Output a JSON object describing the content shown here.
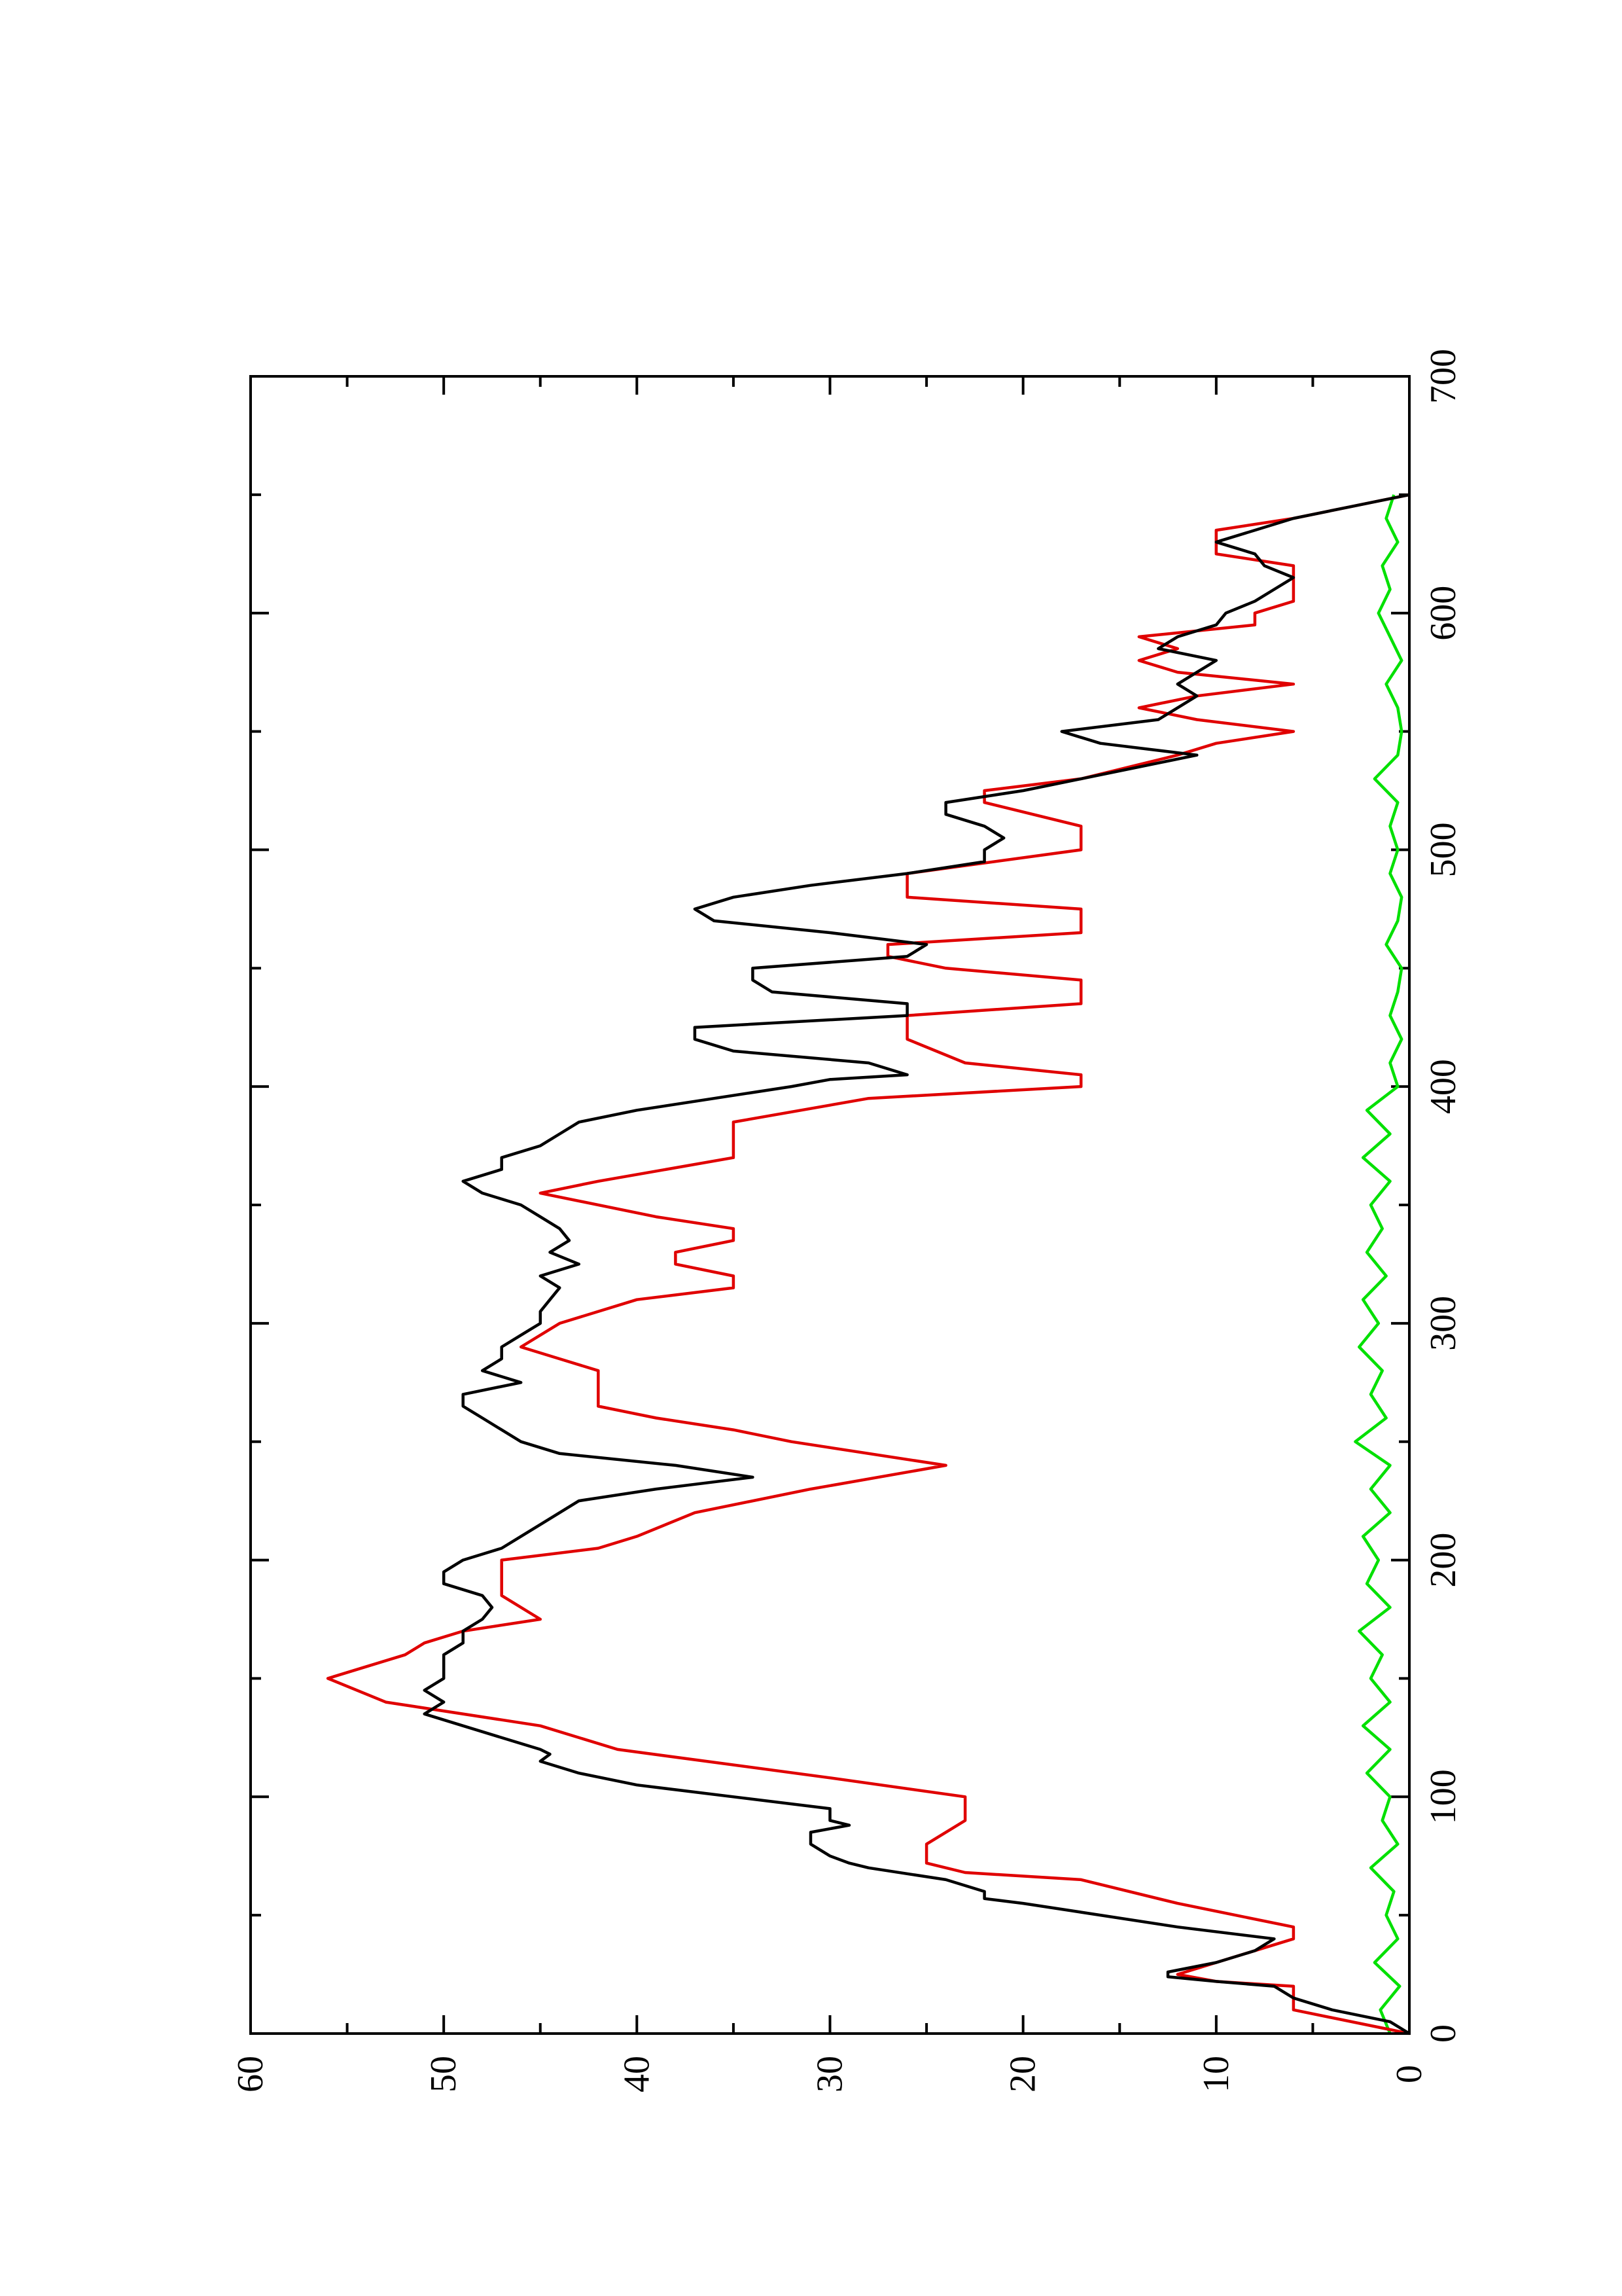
{
  "chart_data": {
    "type": "line",
    "orientation": "rotated-90-ccw",
    "title": "",
    "xlabel": "",
    "ylabel": "",
    "xlim": [
      0,
      700
    ],
    "ylim": [
      0,
      60
    ],
    "x_ticks": [
      0,
      100,
      200,
      300,
      400,
      500,
      600,
      700
    ],
    "x_tick_labels": [
      "0",
      "100",
      "200",
      "300",
      "400",
      "500",
      "600",
      "700"
    ],
    "x_minor_ticks": [
      50,
      150,
      250,
      350,
      450,
      550,
      650
    ],
    "y_ticks": [
      0,
      10,
      20,
      30,
      40,
      50,
      60
    ],
    "y_tick_labels": [
      "0",
      "10",
      "20",
      "30",
      "40",
      "50",
      "60"
    ],
    "y_minor_ticks": [
      5,
      15,
      25,
      35,
      45,
      55
    ],
    "grid": false,
    "legend": "none",
    "series": [
      {
        "color": "#000000",
        "x": [
          0,
          5,
          10,
          15,
          20,
          22,
          24,
          26,
          30,
          35,
          40,
          45,
          50,
          55,
          57,
          60,
          65,
          70,
          72,
          75,
          80,
          85,
          88,
          90,
          95,
          100,
          105,
          110,
          115,
          118,
          120,
          125,
          130,
          135,
          140,
          145,
          150,
          155,
          160,
          165,
          170,
          175,
          180,
          185,
          190,
          195,
          200,
          205,
          210,
          215,
          220,
          225,
          230,
          233,
          235,
          240,
          245,
          250,
          255,
          260,
          265,
          270,
          275,
          280,
          285,
          290,
          295,
          300,
          305,
          310,
          315,
          320,
          325,
          330,
          335,
          340,
          345,
          350,
          355,
          360,
          365,
          370,
          375,
          380,
          385,
          390,
          395,
          400,
          403,
          405,
          410,
          415,
          420,
          425,
          430,
          435,
          440,
          445,
          450,
          455,
          460,
          465,
          470,
          475,
          480,
          485,
          490,
          495,
          500,
          505,
          510,
          515,
          520,
          525,
          530,
          535,
          540,
          545,
          550,
          555,
          560,
          565,
          570,
          575,
          580,
          585,
          590,
          595,
          600,
          605,
          610,
          615,
          620,
          625,
          630,
          635,
          640,
          645,
          650
        ],
        "y": [
          0,
          1,
          4,
          6,
          7,
          10,
          12.5,
          12.5,
          10,
          8,
          7,
          12,
          16,
          20,
          22,
          22,
          24,
          28,
          29,
          30,
          31,
          31,
          29,
          30,
          30,
          35,
          40,
          43,
          45,
          44.5,
          45,
          47,
          49,
          51,
          50,
          51,
          50,
          50,
          50,
          49,
          49,
          48,
          47.5,
          48,
          50,
          50,
          49,
          47,
          46,
          45,
          44,
          43,
          39,
          36,
          34,
          38,
          44,
          46,
          47,
          48,
          49,
          49,
          46,
          48,
          47,
          47,
          46,
          45,
          45,
          44.5,
          44,
          45,
          43,
          44.5,
          43.5,
          44,
          45,
          46,
          48,
          49,
          47,
          47,
          45,
          44,
          43,
          40,
          36,
          32,
          30,
          26,
          28,
          35,
          37,
          37,
          26,
          26,
          33,
          34,
          34,
          26,
          25,
          30,
          36,
          37,
          35,
          31,
          26,
          22,
          22,
          21,
          22,
          24,
          24,
          20,
          17,
          14,
          11,
          16,
          18,
          13,
          12,
          11,
          12,
          11,
          10,
          13,
          12,
          10,
          9.5,
          8,
          7,
          6,
          7.5,
          8,
          10,
          8,
          6,
          3,
          0
        ]
      },
      {
        "color": "#e00000",
        "x": [
          0,
          10,
          20,
          22,
          25,
          30,
          40,
          45,
          55,
          65,
          68,
          72,
          80,
          90,
          100,
          108,
          120,
          130,
          140,
          150,
          155,
          160,
          165,
          170,
          175,
          185,
          200,
          205,
          210,
          220,
          230,
          240,
          250,
          255,
          260,
          265,
          280,
          285,
          290,
          300,
          310,
          315,
          320,
          325,
          330,
          335,
          340,
          345,
          355,
          360,
          370,
          385,
          395,
          400,
          405,
          410,
          420,
          430,
          435,
          445,
          450,
          455,
          460,
          465,
          475,
          480,
          490,
          500,
          510,
          520,
          525,
          530,
          540,
          545,
          550,
          555,
          560,
          565,
          570,
          575,
          580,
          585,
          590,
          595,
          600,
          605,
          615,
          620,
          625,
          635,
          640,
          645,
          650
        ],
        "y": [
          0,
          6,
          6,
          10,
          12,
          10,
          6,
          6,
          12,
          17,
          23,
          25,
          25,
          23,
          23,
          30,
          41,
          45,
          53,
          56,
          54,
          52,
          51,
          49,
          45,
          47,
          47,
          42,
          40,
          37,
          31,
          24,
          32,
          35,
          39,
          42,
          42,
          44,
          46,
          44,
          40,
          35,
          35,
          38,
          38,
          35,
          35,
          39,
          45,
          42,
          35,
          35,
          28,
          17,
          17,
          23,
          26,
          26,
          17,
          17,
          24,
          27,
          27,
          17,
          17,
          26,
          26,
          17,
          17,
          22,
          22,
          17,
          12,
          10,
          6,
          11,
          14,
          11,
          6,
          12,
          14,
          12,
          14,
          8,
          8,
          6,
          6,
          6,
          10,
          10,
          6,
          3,
          0
        ]
      },
      {
        "color": "#00e000",
        "x": [
          0,
          10,
          20,
          30,
          40,
          50,
          60,
          70,
          80,
          90,
          100,
          110,
          120,
          130,
          140,
          150,
          160,
          170,
          180,
          190,
          200,
          210,
          220,
          230,
          240,
          250,
          260,
          270,
          280,
          290,
          300,
          310,
          320,
          330,
          340,
          350,
          360,
          370,
          380,
          390,
          400,
          410,
          420,
          430,
          440,
          450,
          460,
          470,
          480,
          490,
          500,
          510,
          520,
          530,
          540,
          550,
          560,
          570,
          580,
          590,
          600,
          610,
          620,
          630,
          640,
          650
        ],
        "y": [
          1.0,
          1.5,
          0.5,
          1.8,
          0.6,
          1.2,
          0.8,
          2.0,
          0.6,
          1.4,
          1.0,
          2.2,
          1.0,
          2.4,
          1.0,
          2.0,
          1.4,
          2.6,
          1.0,
          2.2,
          1.6,
          2.4,
          1.0,
          2.0,
          1.0,
          2.8,
          1.2,
          2.0,
          1.4,
          2.6,
          1.6,
          2.4,
          1.2,
          2.2,
          1.4,
          2.0,
          1.0,
          2.4,
          1.0,
          2.2,
          0.6,
          1.0,
          0.4,
          1.0,
          0.6,
          0.4,
          1.2,
          0.6,
          0.4,
          1.0,
          0.6,
          1.0,
          0.6,
          1.8,
          0.6,
          0.4,
          0.6,
          1.2,
          0.4,
          1.0,
          1.6,
          1.0,
          1.4,
          0.6,
          1.2,
          0.8
        ]
      }
    ]
  }
}
